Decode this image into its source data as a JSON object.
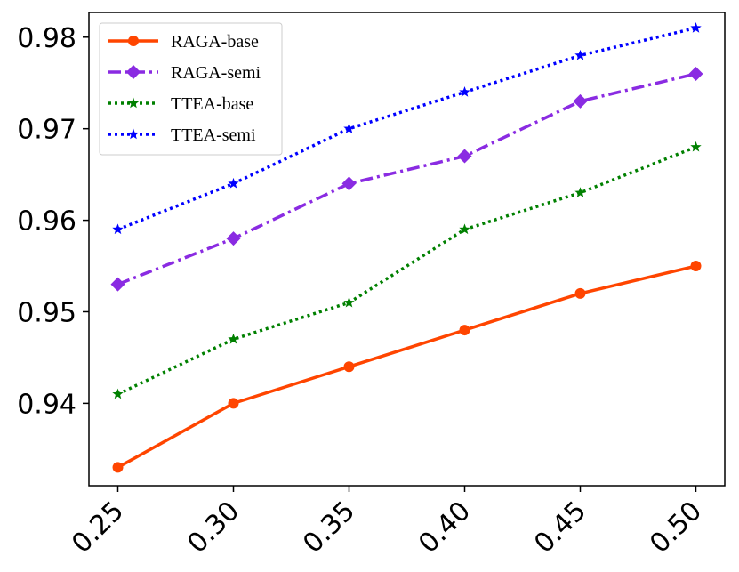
{
  "chart_data": {
    "type": "line",
    "title": "",
    "xlabel": "",
    "ylabel": "",
    "x": [
      0.25,
      0.3,
      0.35,
      0.4,
      0.45,
      0.5
    ],
    "x_tick_labels": [
      "0.25",
      "0.30",
      "0.35",
      "0.40",
      "0.45",
      "0.50"
    ],
    "y_ticks": [
      0.94,
      0.95,
      0.96,
      0.97,
      0.98
    ],
    "y_tick_labels": [
      "0.94",
      "0.95",
      "0.96",
      "0.97",
      "0.98"
    ],
    "xlim": [
      0.2375,
      0.5125
    ],
    "ylim": [
      0.931,
      0.9827
    ],
    "grid": false,
    "legend_position": "top-left",
    "series": [
      {
        "name": "RAGA-base",
        "values": [
          0.933,
          0.94,
          0.944,
          0.948,
          0.952,
          0.955
        ],
        "color": "#ff4500",
        "line_style": "solid",
        "marker": "circle"
      },
      {
        "name": "RAGA-semi",
        "values": [
          0.953,
          0.958,
          0.964,
          0.967,
          0.973,
          0.976
        ],
        "color": "#8a2be2",
        "line_style": "dashdot",
        "marker": "diamond"
      },
      {
        "name": "TTEA-base",
        "values": [
          0.941,
          0.947,
          0.951,
          0.959,
          0.963,
          0.968
        ],
        "color": "#008000",
        "line_style": "dotted",
        "marker": "star"
      },
      {
        "name": "TTEA-semi",
        "values": [
          0.959,
          0.964,
          0.97,
          0.974,
          0.978,
          0.981
        ],
        "color": "#0000ff",
        "line_style": "dotted",
        "marker": "star"
      }
    ]
  }
}
